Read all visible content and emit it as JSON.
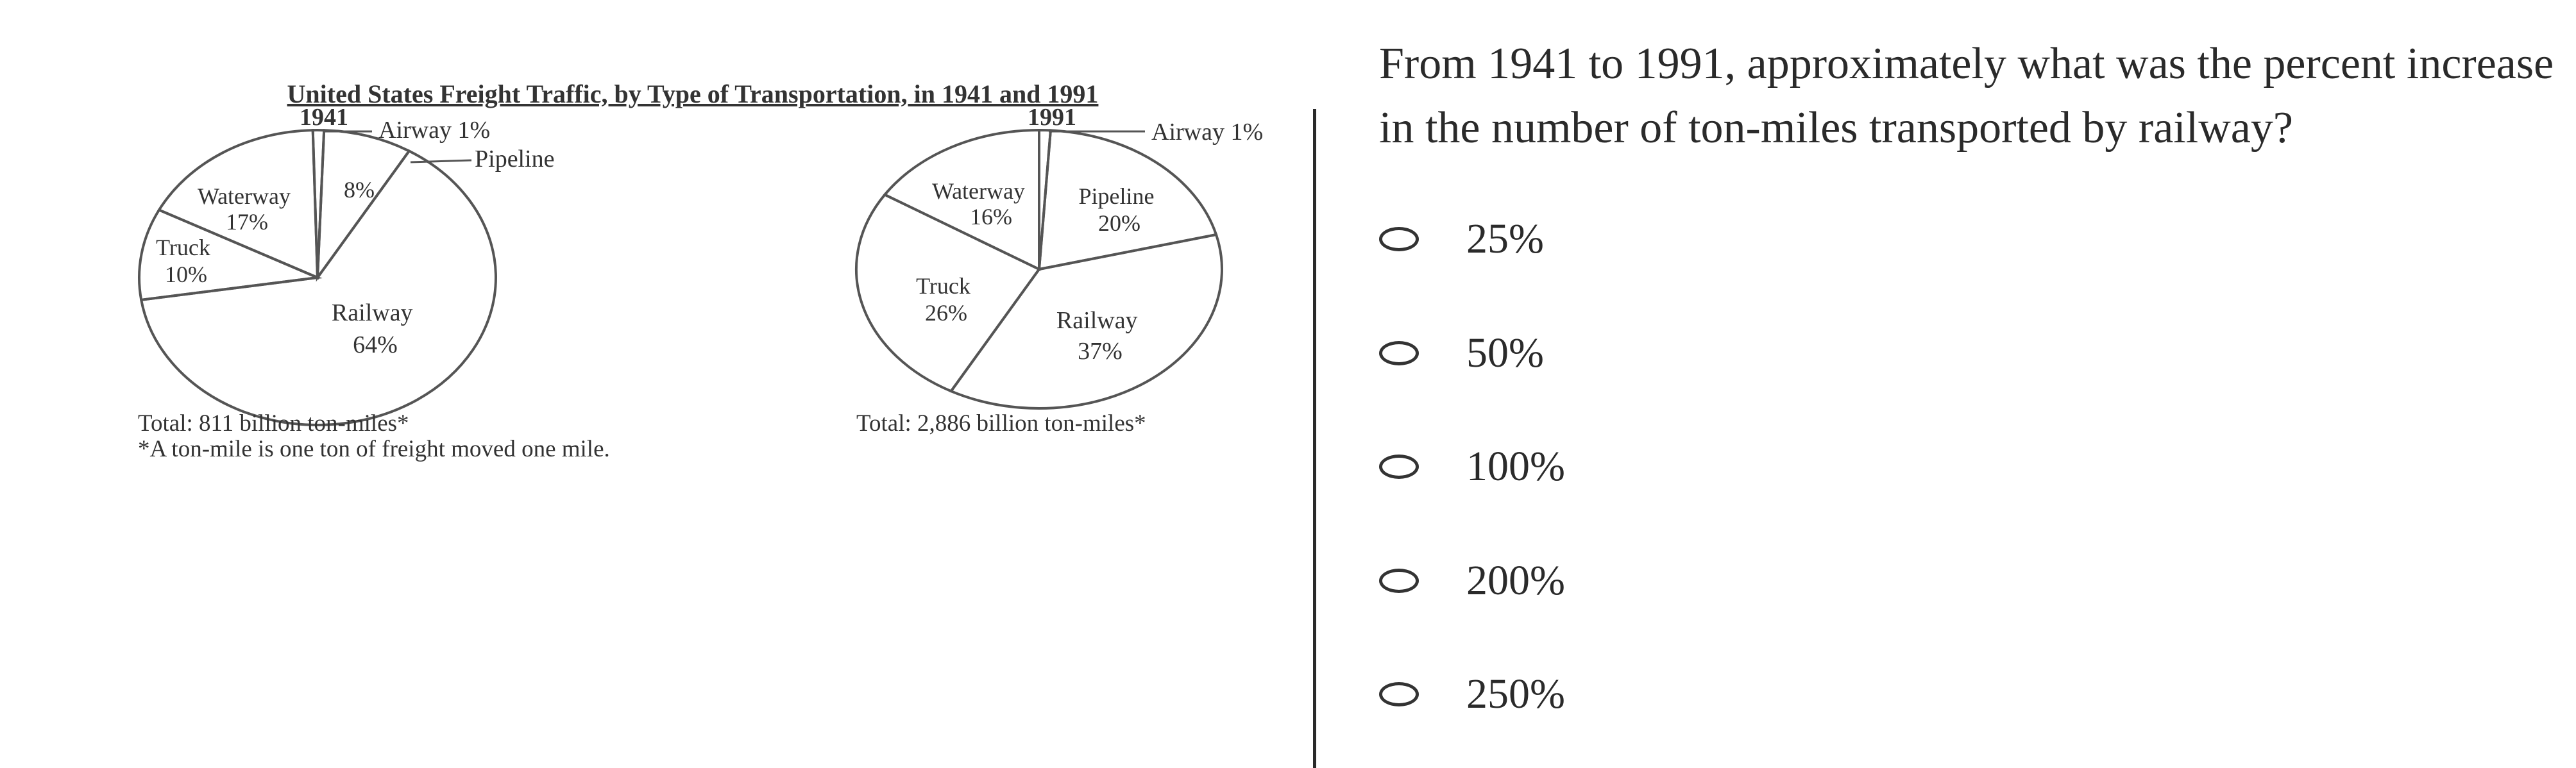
{
  "question": {
    "text": "From 1941 to 1991, approximately what was the percent increase in the number of ton-miles transported by railway?",
    "options": [
      "25%",
      "50%",
      "100%",
      "200%",
      "250%"
    ]
  },
  "colors": {
    "line": "#555555",
    "text": "#333333",
    "divider": "#2a2a2a"
  },
  "chart_data": {
    "title": "United States Freight Traffic, by Type of Transportation, in 1941 and 1991",
    "footnote": "*A ton-mile is one ton of freight moved one mile.",
    "charts": [
      {
        "type": "pie",
        "year": "1941",
        "total": "Total: 811 billion ton-miles*",
        "slices": [
          {
            "label": "Airway",
            "percent": 1,
            "text": "Airway 1%"
          },
          {
            "label": "Pipeline",
            "percent": 8,
            "text": "8%"
          },
          {
            "label": "Railway",
            "percent": 64,
            "text": "Railway 64%"
          },
          {
            "label": "Truck",
            "percent": 10,
            "text": "Truck 10%"
          },
          {
            "label": "Waterway",
            "percent": 17,
            "text": "Waterway 17%"
          }
        ],
        "callouts": [
          "Pipeline"
        ]
      },
      {
        "type": "pie",
        "year": "1991",
        "total": "Total: 2,886 billion ton-miles*",
        "slices": [
          {
            "label": "Airway",
            "percent": 1,
            "text": "Airway 1%"
          },
          {
            "label": "Pipeline",
            "percent": 20,
            "text": "Pipeline 20%"
          },
          {
            "label": "Railway",
            "percent": 37,
            "text": "Railway 37%"
          },
          {
            "label": "Truck",
            "percent": 26,
            "text": "Truck 26%"
          },
          {
            "label": "Waterway",
            "percent": 16,
            "text": "Waterway 16%"
          }
        ]
      }
    ]
  }
}
